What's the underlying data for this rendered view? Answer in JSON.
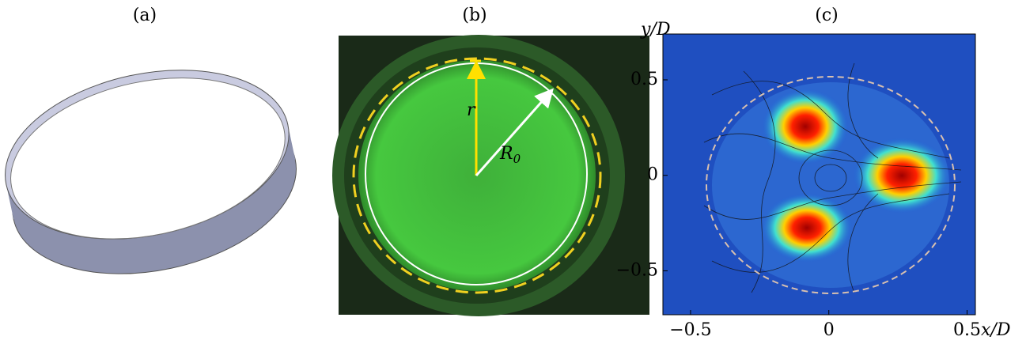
{
  "panels": [
    {
      "label": "(a)"
    },
    {
      "label": "(b)",
      "annotations": {
        "r": "r",
        "R0": "R",
        "R0_subscript": "0"
      }
    },
    {
      "label": "(c)",
      "x_label": "x/D",
      "y_label": "y/D",
      "xlim": [
        -0.6,
        0.53
      ],
      "ylim": [
        -0.73,
        0.74
      ],
      "xticks": [
        {
          "value": -0.5,
          "label": "−0.5"
        },
        0,
        0.5
      ],
      "yticks": [
        0.5,
        0,
        {
          "value": -0.5,
          "label": "−0.5"
        }
      ]
    }
  ]
}
